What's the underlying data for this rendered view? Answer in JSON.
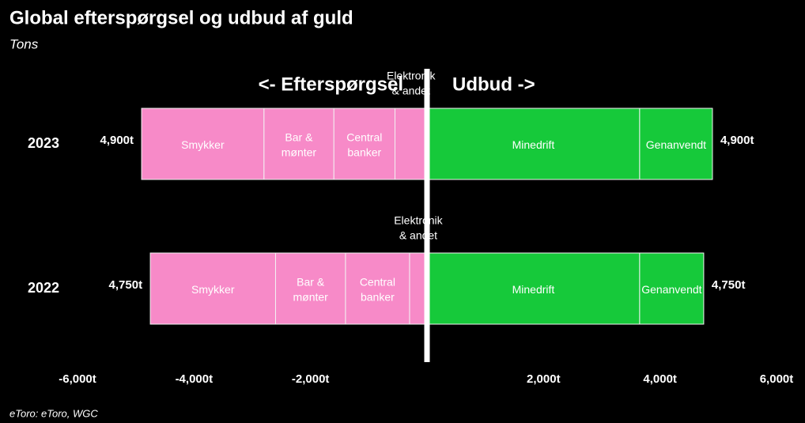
{
  "chart_data": {
    "type": "diverging-bar",
    "title": "Global efterspørgsel og udbud af guld",
    "subtitle": "Tons",
    "source": "eToro: eToro, WGC",
    "annotations": [
      "<- Efterspørgsel",
      "Udbud ->"
    ],
    "categories": [
      "2023",
      "2022"
    ],
    "series": [
      {
        "name": "Elektronik & andet",
        "color": "#f78ac8",
        "values": [
          -550,
          -300
        ]
      },
      {
        "name": "Central banker",
        "color": "#f78ac8",
        "values": [
          -1050,
          -1100
        ]
      },
      {
        "name": "Bar & mønter",
        "color": "#f78ac8",
        "values": [
          -1200,
          -1200
        ]
      },
      {
        "name": "Smykker",
        "color": "#f78ac8",
        "values": [
          -2100,
          -2150
        ]
      },
      {
        "name": "Minedrift",
        "color": "#16c93a",
        "values": [
          3650,
          3650
        ]
      },
      {
        "name": "Genanvendt",
        "color": "#16c93a",
        "values": [
          1250,
          1100
        ]
      }
    ],
    "totals": [
      {
        "values": [
          4900,
          4750
        ],
        "value_labels": [
          "4,900t",
          "4,750t"
        ]
      },
      {
        "values": [
          4900,
          4750
        ],
        "value_labels": [
          "4,900t",
          "4,750t"
        ]
      }
    ],
    "xlim": [
      -6000,
      6000
    ],
    "xticks": [
      {
        "value": -6000,
        "label": "-6,000t"
      },
      {
        "value": -4000,
        "label": "-4,000t"
      },
      {
        "value": -2000,
        "label": "-2,000t"
      },
      {
        "value": 2000,
        "label": "2,000t"
      },
      {
        "value": 4000,
        "label": "4,000t"
      },
      {
        "value": 6000,
        "label": "6,000t"
      }
    ]
  }
}
